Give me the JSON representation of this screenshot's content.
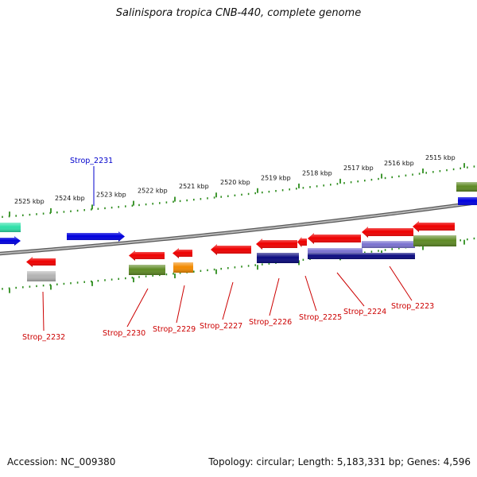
{
  "title": "Salinispora tropica CNB-440, complete genome",
  "footer": {
    "accession": "Accession: NC_009380",
    "summary": "Topology: circular; Length: 5,183,331 bp; Genes: 4,596"
  },
  "colors": {
    "red": "#ee0000",
    "blue": "#0000dd",
    "navy": "#0a0a80",
    "olive": "#5e8a24",
    "orange": "#f28a00",
    "gray": "#b3b3b3",
    "teal": "#2ee0a8",
    "lavender": "#7a72d0",
    "tick_green": "#2c8c1c",
    "backbone": "#8a8a8a"
  },
  "scale_labels": [
    "2525 kbp",
    "2524 kbp",
    "2523 kbp",
    "2522 kbp",
    "2521 kbp",
    "2520 kbp",
    "2519 kbp",
    "2518 kbp",
    "2517 kbp",
    "2516 kbp",
    "2515 kbp"
  ],
  "gene_labels": [
    {
      "text": "Strop_2231",
      "color": "#0000cc"
    },
    {
      "text": "Strop_2232",
      "color": "#cc0000"
    },
    {
      "text": "Strop_2230",
      "color": "#cc0000"
    },
    {
      "text": "Strop_2229",
      "color": "#cc0000"
    },
    {
      "text": "Strop_2227",
      "color": "#cc0000"
    },
    {
      "text": "Strop_2226",
      "color": "#cc0000"
    },
    {
      "text": "Strop_2225",
      "color": "#cc0000"
    },
    {
      "text": "Strop_2224",
      "color": "#cc0000"
    },
    {
      "text": "Strop_2223",
      "color": "#cc0000"
    }
  ]
}
